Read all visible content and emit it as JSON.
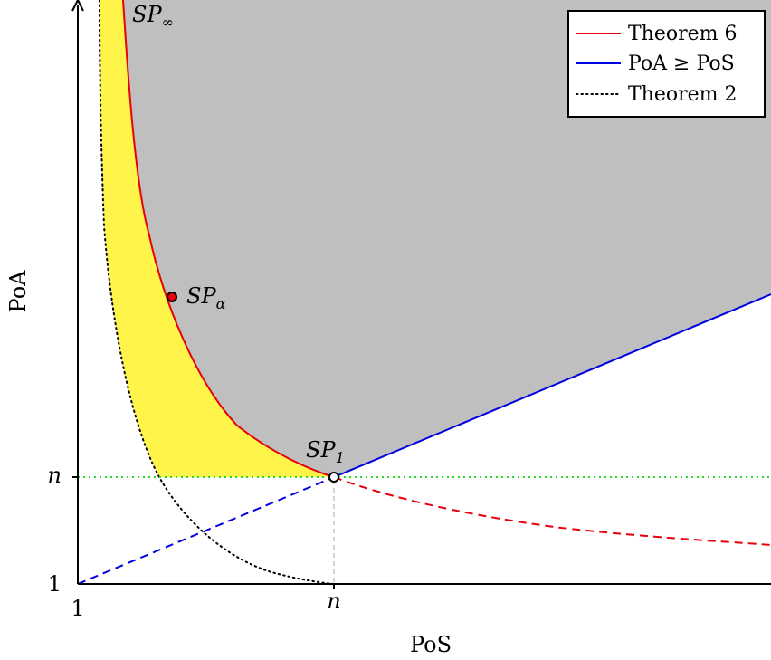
{
  "chart_data": {
    "type": "line",
    "title": "",
    "xlabel": "PoS",
    "ylabel": "PoA",
    "x_ticks": [
      "1",
      "n"
    ],
    "y_ticks": [
      "1",
      "n"
    ],
    "grid": false,
    "legend_position": "top-right",
    "legend": [
      {
        "label": "Theorem 6",
        "style": "solid",
        "color": "#e8000b"
      },
      {
        "label": "PoA ≥ PoS",
        "style": "solid",
        "color": "#0000e0"
      },
      {
        "label": "Theorem 2",
        "style": "dotted",
        "color": "#000000"
      }
    ],
    "regions": [
      {
        "name": "gray-region",
        "color": "#bfbfbf"
      },
      {
        "name": "yellow-region",
        "color": "#fff54a"
      }
    ],
    "reference_lines": [
      {
        "orientation": "horizontal",
        "at": "n",
        "style": "dotted",
        "color": "#22dd22"
      },
      {
        "orientation": "vertical",
        "at": "n",
        "style": "dashed",
        "color": "#aaaaaa"
      }
    ],
    "points": [
      {
        "label": "SP",
        "subscript": "∞",
        "fill": "none"
      },
      {
        "label": "SP",
        "subscript": "α",
        "fill": "#e8000b"
      },
      {
        "label": "SP",
        "subscript": "1",
        "fill": "#ffffff"
      }
    ]
  }
}
